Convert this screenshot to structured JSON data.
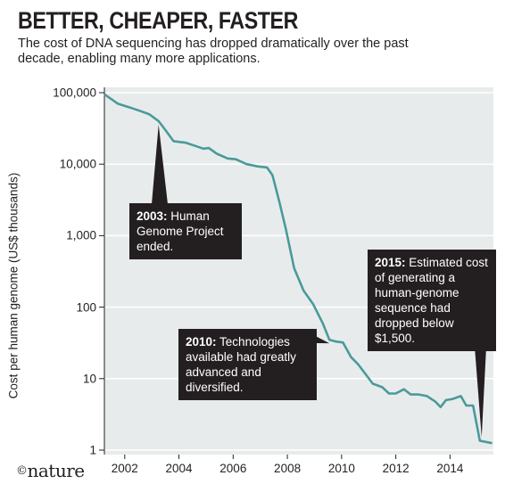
{
  "header": {
    "title": "BETTER, CHEAPER, FASTER",
    "subtitle": "The cost of DNA sequencing has dropped dramatically over the past decade, enabling many more applications."
  },
  "brand": {
    "copyright": "©",
    "name": "nature"
  },
  "colors": {
    "line": "#4a9a9b",
    "plot_background": "#e8ebec",
    "callout_background": "#231f20",
    "callout_text": "#ffffff"
  },
  "callouts": [
    {
      "year": "2003:",
      "text": "Human Genome Project ended."
    },
    {
      "year": "2010:",
      "text": "Technologies available had greatly advanced and diversified."
    },
    {
      "year": "2015:",
      "text": "Estimated cost of generating a human-genome sequence had dropped below $1,500."
    }
  ],
  "chart_data": {
    "type": "line",
    "title": "BETTER, CHEAPER, FASTER",
    "subtitle": "The cost of DNA sequencing has dropped dramatically over the past decade, enabling many more applications.",
    "xlabel": "",
    "ylabel": "Cost per human genome (US$ thousands)",
    "yscale": "log",
    "ylim": [
      1,
      100000
    ],
    "xlim": [
      2001.25,
      2015.6
    ],
    "grid": true,
    "x_ticks": [
      "2002",
      "2004",
      "2006",
      "2008",
      "2010",
      "2012",
      "2014"
    ],
    "y_ticks": [
      "1",
      "10",
      "100",
      "1,000",
      "10,000",
      "100,000"
    ],
    "series": [
      {
        "points": [
          [
            2001.25,
            95000
          ],
          [
            2001.75,
            70000
          ],
          [
            2002.2,
            62000
          ],
          [
            2002.6,
            55000
          ],
          [
            2002.9,
            50000
          ],
          [
            2003.25,
            40000
          ],
          [
            2003.5,
            30000
          ],
          [
            2003.8,
            21000
          ],
          [
            2004.25,
            20000
          ],
          [
            2004.6,
            18000
          ],
          [
            2004.9,
            16500
          ],
          [
            2005.1,
            16800
          ],
          [
            2005.4,
            14000
          ],
          [
            2005.8,
            12000
          ],
          [
            2006.1,
            11700
          ],
          [
            2006.5,
            10000
          ],
          [
            2006.9,
            9300
          ],
          [
            2007.25,
            9000
          ],
          [
            2007.45,
            7000
          ],
          [
            2007.7,
            3000
          ],
          [
            2007.95,
            1200
          ],
          [
            2008.25,
            350
          ],
          [
            2008.6,
            170
          ],
          [
            2008.95,
            110
          ],
          [
            2009.3,
            60
          ],
          [
            2009.55,
            35
          ],
          [
            2009.8,
            33
          ],
          [
            2010.05,
            32
          ],
          [
            2010.35,
            20
          ],
          [
            2010.6,
            16
          ],
          [
            2010.85,
            12
          ],
          [
            2011.15,
            8.5
          ],
          [
            2011.5,
            7.6
          ],
          [
            2011.75,
            6.2
          ],
          [
            2012.0,
            6.2
          ],
          [
            2012.3,
            7.1
          ],
          [
            2012.55,
            6.0
          ],
          [
            2012.85,
            6.0
          ],
          [
            2013.15,
            5.7
          ],
          [
            2013.45,
            4.8
          ],
          [
            2013.65,
            4.0
          ],
          [
            2013.85,
            5.0
          ],
          [
            2014.1,
            5.2
          ],
          [
            2014.4,
            5.7
          ],
          [
            2014.6,
            4.2
          ],
          [
            2014.85,
            4.2
          ],
          [
            2015.1,
            1.35
          ],
          [
            2015.55,
            1.25
          ]
        ]
      }
    ]
  }
}
